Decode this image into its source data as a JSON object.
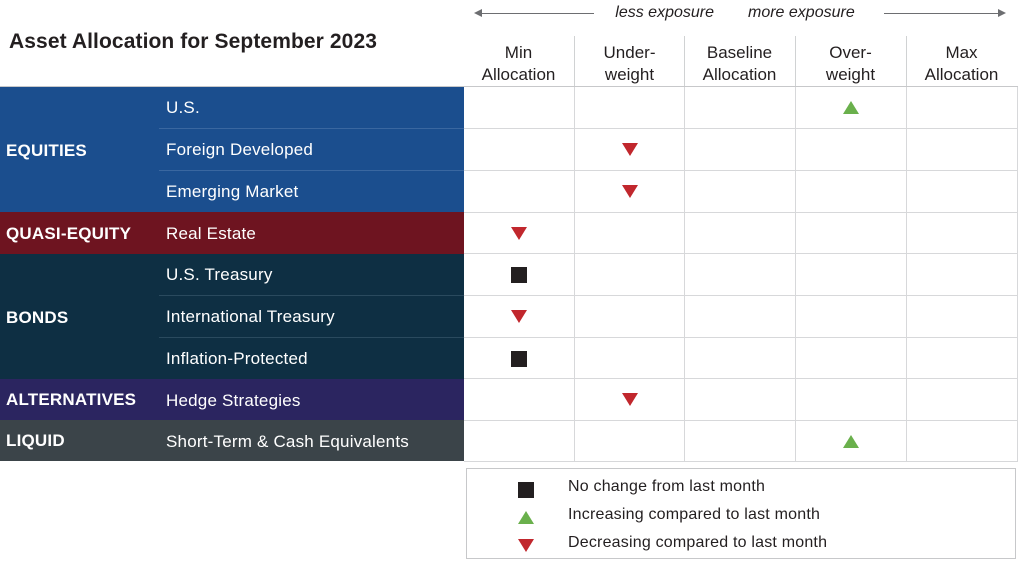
{
  "title": "Asset Allocation for September 2023",
  "exposure": {
    "less": "less exposure",
    "more": "more exposure"
  },
  "columns": [
    {
      "line1": "Min",
      "line2": "Allocation"
    },
    {
      "line1": "Under-",
      "line2": "weight"
    },
    {
      "line1": "Baseline",
      "line2": "Allocation"
    },
    {
      "line1": "Over-",
      "line2": "weight"
    },
    {
      "line1": "Max",
      "line2": "Allocation"
    }
  ],
  "categories": [
    {
      "label": "EQUITIES",
      "color": "#1b4e8e"
    },
    {
      "label": "QUASI-EQUITY",
      "color": "#6e1420"
    },
    {
      "label": "BONDS",
      "color": "#0e2f43"
    },
    {
      "label": "ALTERNATIVES",
      "color": "#2b2560"
    },
    {
      "label": "LIQUID",
      "color": "#3b4449"
    }
  ],
  "rows": [
    {
      "label": "U.S.",
      "position": "Over-weight",
      "change": "increasing"
    },
    {
      "label": "Foreign Developed",
      "position": "Under-weight",
      "change": "decreasing"
    },
    {
      "label": "Emerging Market",
      "position": "Under-weight",
      "change": "decreasing"
    },
    {
      "label": "Real Estate",
      "position": "Min Allocation",
      "change": "decreasing"
    },
    {
      "label": "U.S. Treasury",
      "position": "Min Allocation",
      "change": "no-change"
    },
    {
      "label": "International Treasury",
      "position": "Min Allocation",
      "change": "decreasing"
    },
    {
      "label": "Inflation-Protected",
      "position": "Min Allocation",
      "change": "no-change"
    },
    {
      "label": "Hedge Strategies",
      "position": "Under-weight",
      "change": "decreasing"
    },
    {
      "label": "Short-Term & Cash Equivalents",
      "position": "Over-weight",
      "change": "increasing"
    }
  ],
  "legend": {
    "no_change": "No change from last month",
    "increasing": "Increasing compared to last month",
    "decreasing": "Decreasing compared to last month"
  },
  "colors": {
    "increase": "#6ab04c",
    "decrease": "#c1272d",
    "no_change": "#231f20"
  }
}
